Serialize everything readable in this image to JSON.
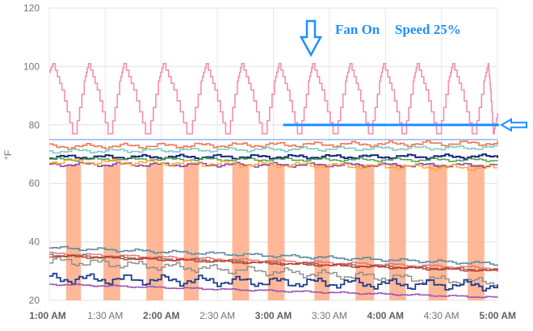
{
  "chart_data": {
    "type": "line",
    "title": "",
    "xlabel": "",
    "ylabel": "°F",
    "ylim": [
      20,
      120
    ],
    "xlim_minutes": [
      0,
      240
    ],
    "x_ticks": [
      {
        "t": 0,
        "label": "1:00 AM",
        "major": true
      },
      {
        "t": 30,
        "label": "1:30 AM",
        "major": false
      },
      {
        "t": 60,
        "label": "2:00 AM",
        "major": true
      },
      {
        "t": 90,
        "label": "2:30 AM",
        "major": false
      },
      {
        "t": 120,
        "label": "3:00 AM",
        "major": true
      },
      {
        "t": 150,
        "label": "3:30 AM",
        "major": false
      },
      {
        "t": 180,
        "label": "4:00 AM",
        "major": true
      },
      {
        "t": 210,
        "label": "4:30 AM",
        "major": false
      },
      {
        "t": 240,
        "label": "5:00 AM",
        "major": true
      }
    ],
    "y_ticks": [
      20,
      40,
      60,
      80,
      100,
      120
    ],
    "grid": true,
    "cycling_series": {
      "color": "#f48fb1",
      "max": 101,
      "min": 77,
      "peaks_minutes": [
        2,
        21,
        40,
        61,
        84,
        103,
        123,
        141,
        161,
        179,
        197,
        216,
        235
      ]
    },
    "active_bands": {
      "color": "#ffab85",
      "ranges_minutes": [
        [
          9,
          17
        ],
        [
          29,
          38
        ],
        [
          52,
          61
        ],
        [
          72,
          80
        ],
        [
          98,
          107
        ],
        [
          117,
          126
        ],
        [
          142,
          150
        ],
        [
          164,
          174
        ],
        [
          182,
          191
        ],
        [
          203,
          213
        ],
        [
          224,
          233
        ]
      ]
    },
    "series": [
      {
        "color": "#90b4ff",
        "y_start": 75,
        "y_end": 75,
        "amp": 0,
        "width": 1.5
      },
      {
        "color": "#f4744c",
        "y_start": 72.6,
        "y_end": 73.8,
        "amp": 0.6,
        "width": 1.6
      },
      {
        "color": "#80cbc4",
        "y_start": 71.0,
        "y_end": 72.3,
        "amp": 0.5,
        "width": 1.6
      },
      {
        "color": "#1a237e",
        "y_start": 69.0,
        "y_end": 69.2,
        "amp": 0.5,
        "width": 2
      },
      {
        "color": "#43a047",
        "y_start": 68.3,
        "y_end": 68.0,
        "amp": 0.4,
        "width": 1.4
      },
      {
        "color": "#8e44ad",
        "y_start": 66.5,
        "y_end": 66.2,
        "amp": 0.5,
        "width": 1.6
      },
      {
        "color": "#ffa726",
        "y_start": 67.6,
        "y_end": 65.2,
        "amp": 0.7,
        "width": 1.4
      },
      {
        "color": "#5e8ca3",
        "y_start": 38.0,
        "y_end": 32.5,
        "amp": 0.4,
        "width": 1.6
      },
      {
        "color": "#e57373",
        "y_start": 36.0,
        "y_end": 31.0,
        "amp": 0.3,
        "width": 1.4
      },
      {
        "color": "#8d6e63",
        "y_start": 35.5,
        "y_end": 30.2,
        "amp": 0.3,
        "width": 1.4
      },
      {
        "color": "#c0392b",
        "y_start": 35.2,
        "y_end": 30.0,
        "amp": 0.3,
        "width": 1.4
      },
      {
        "color": "#8c8c8c",
        "y_start": 33.5,
        "y_end": 26.0,
        "amp": 1.0,
        "width": 1.4
      },
      {
        "color": "#1f3c8f",
        "y_start": 27.5,
        "y_end": 25.0,
        "amp": 1.2,
        "width": 1.8
      },
      {
        "color": "#9b59b6",
        "y_start": 25.5,
        "y_end": 21.0,
        "amp": 0.2,
        "width": 1.6
      }
    ],
    "threshold_line": {
      "y": 80,
      "t_start": 120,
      "t_end": 240,
      "color": "#1e90ff"
    },
    "annotations": {
      "fan_on": "Fan On",
      "speed": "Speed 25%",
      "color": "#1e90ff"
    }
  }
}
